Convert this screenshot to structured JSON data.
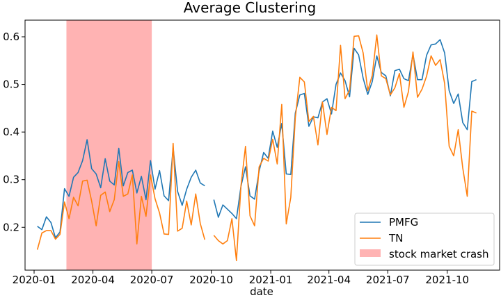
{
  "chart_data": {
    "type": "line",
    "title": "Average Clustering",
    "xlabel": "date",
    "ylabel": "",
    "xlim": [
      "2019-12-18",
      "2021-12-21"
    ],
    "ylim": [
      0.11,
      0.635
    ],
    "grid": false,
    "legend_position": "bottom-right",
    "x_ticks": [
      "2020-01-01",
      "2020-04-01",
      "2020-07-01",
      "2020-10-01",
      "2021-01-01",
      "2021-04-01",
      "2021-07-01",
      "2021-10-01"
    ],
    "x_tick_labels": [
      "2020-01",
      "2020-04",
      "2020-07",
      "2020-10",
      "2021-01",
      "2021-04",
      "2021-07",
      "2021-10"
    ],
    "y_ticks": [
      0.2,
      0.3,
      0.4,
      0.5,
      0.6
    ],
    "y_tick_labels": [
      "0.2",
      "0.3",
      "0.4",
      "0.5",
      "0.6"
    ],
    "shaded_region": {
      "label": "stock market crash",
      "start": "2020-02-20",
      "end": "2020-07-01",
      "color": "#ffb3b3"
    },
    "series": [
      {
        "name": "PMFG",
        "color": "#1f77b4",
        "segments": [
          {
            "x": [
              "2020-01-06",
              "2020-01-13",
              "2020-01-20",
              "2020-01-27",
              "2020-02-03",
              "2020-02-10",
              "2020-02-17",
              "2020-02-24",
              "2020-03-02",
              "2020-03-09",
              "2020-03-16",
              "2020-03-23",
              "2020-03-30",
              "2020-04-06",
              "2020-04-13",
              "2020-04-20",
              "2020-04-27",
              "2020-05-04",
              "2020-05-11",
              "2020-05-18",
              "2020-05-25",
              "2020-06-01",
              "2020-06-08",
              "2020-06-15",
              "2020-06-22",
              "2020-06-29",
              "2020-07-06",
              "2020-07-13",
              "2020-07-20",
              "2020-07-27",
              "2020-08-03",
              "2020-08-10",
              "2020-08-17",
              "2020-08-24",
              "2020-08-31",
              "2020-09-07",
              "2020-09-14",
              "2020-09-21"
            ],
            "y": [
              0.202,
              0.195,
              0.222,
              0.21,
              0.178,
              0.19,
              0.281,
              0.265,
              0.305,
              0.315,
              0.34,
              0.384,
              0.323,
              0.312,
              0.283,
              0.344,
              0.297,
              0.289,
              0.366,
              0.287,
              0.315,
              0.32,
              0.272,
              0.307,
              0.258,
              0.34,
              0.28,
              0.319,
              0.266,
              0.256,
              0.367,
              0.275,
              0.246,
              0.28,
              0.305,
              0.32,
              0.293,
              0.287
            ]
          },
          {
            "x": [
              "2020-10-05",
              "2020-10-12",
              "2020-10-19",
              "2020-10-26",
              "2020-11-02",
              "2020-11-09",
              "2020-11-16",
              "2020-11-23",
              "2020-11-30",
              "2020-12-07",
              "2020-12-14",
              "2020-12-21",
              "2020-12-28",
              "2021-01-04",
              "2021-01-11",
              "2021-01-18",
              "2021-01-25",
              "2021-02-01",
              "2021-02-08",
              "2021-02-15",
              "2021-02-22",
              "2021-03-01",
              "2021-03-08",
              "2021-03-15",
              "2021-03-22",
              "2021-03-29",
              "2021-04-05",
              "2021-04-12",
              "2021-04-19",
              "2021-04-26",
              "2021-05-03",
              "2021-05-10",
              "2021-05-17",
              "2021-05-24",
              "2021-05-31",
              "2021-06-07",
              "2021-06-14",
              "2021-06-21",
              "2021-06-28",
              "2021-07-05",
              "2021-07-12",
              "2021-07-19",
              "2021-07-26",
              "2021-08-02",
              "2021-08-09",
              "2021-08-16",
              "2021-08-23",
              "2021-08-30",
              "2021-09-06",
              "2021-09-13",
              "2021-09-20",
              "2021-09-27",
              "2021-10-04",
              "2021-10-11",
              "2021-10-18",
              "2021-10-25",
              "2021-11-01",
              "2021-11-08",
              "2021-11-15"
            ],
            "y": [
              0.258,
              0.221,
              0.247,
              0.238,
              0.229,
              0.218,
              0.286,
              0.327,
              0.266,
              0.259,
              0.318,
              0.357,
              0.345,
              0.402,
              0.368,
              0.418,
              0.312,
              0.311,
              0.44,
              0.478,
              0.481,
              0.412,
              0.432,
              0.43,
              0.463,
              0.47,
              0.438,
              0.5,
              0.524,
              0.508,
              0.474,
              0.576,
              0.562,
              0.513,
              0.479,
              0.506,
              0.56,
              0.525,
              0.518,
              0.476,
              0.529,
              0.532,
              0.512,
              0.508,
              0.563,
              0.51,
              0.51,
              0.561,
              0.583,
              0.585,
              0.594,
              0.566,
              0.487,
              0.46,
              0.48,
              0.42,
              0.405,
              0.506,
              0.51
            ]
          }
        ]
      },
      {
        "name": "TN",
        "color": "#ff7f0e",
        "segments": [
          {
            "x": [
              "2020-01-06",
              "2020-01-13",
              "2020-01-20",
              "2020-01-27",
              "2020-02-03",
              "2020-02-10",
              "2020-02-17",
              "2020-02-24",
              "2020-03-02",
              "2020-03-09",
              "2020-03-16",
              "2020-03-23",
              "2020-03-30",
              "2020-04-06",
              "2020-04-13",
              "2020-04-20",
              "2020-04-27",
              "2020-05-04",
              "2020-05-11",
              "2020-05-18",
              "2020-05-25",
              "2020-06-01",
              "2020-06-08",
              "2020-06-15",
              "2020-06-22",
              "2020-06-29",
              "2020-07-06",
              "2020-07-13",
              "2020-07-20",
              "2020-07-27",
              "2020-08-03",
              "2020-08-10",
              "2020-08-17",
              "2020-08-24",
              "2020-08-31",
              "2020-09-07",
              "2020-09-14",
              "2020-09-21"
            ],
            "y": [
              0.153,
              0.188,
              0.193,
              0.193,
              0.175,
              0.185,
              0.253,
              0.218,
              0.263,
              0.245,
              0.297,
              0.299,
              0.255,
              0.203,
              0.267,
              0.274,
              0.233,
              0.258,
              0.338,
              0.265,
              0.27,
              0.31,
              0.165,
              0.265,
              0.223,
              0.31,
              0.26,
              0.23,
              0.186,
              0.185,
              0.376,
              0.192,
              0.198,
              0.255,
              0.205,
              0.27,
              0.208,
              0.174
            ]
          },
          {
            "x": [
              "2020-10-05",
              "2020-10-12",
              "2020-10-19",
              "2020-10-26",
              "2020-11-02",
              "2020-11-09",
              "2020-11-16",
              "2020-11-23",
              "2020-11-30",
              "2020-12-07",
              "2020-12-14",
              "2020-12-21",
              "2020-12-28",
              "2021-01-04",
              "2021-01-11",
              "2021-01-18",
              "2021-01-25",
              "2021-02-01",
              "2021-02-08",
              "2021-02-15",
              "2021-02-22",
              "2021-03-01",
              "2021-03-08",
              "2021-03-15",
              "2021-03-22",
              "2021-03-29",
              "2021-04-05",
              "2021-04-12",
              "2021-04-19",
              "2021-04-26",
              "2021-05-03",
              "2021-05-10",
              "2021-05-17",
              "2021-05-24",
              "2021-05-31",
              "2021-06-07",
              "2021-06-14",
              "2021-06-21",
              "2021-06-28",
              "2021-07-05",
              "2021-07-12",
              "2021-07-19",
              "2021-07-26",
              "2021-08-02",
              "2021-08-09",
              "2021-08-16",
              "2021-08-23",
              "2021-08-30",
              "2021-09-06",
              "2021-09-13",
              "2021-09-20",
              "2021-09-27",
              "2021-10-04",
              "2021-10-11",
              "2021-10-18",
              "2021-10-25",
              "2021-11-01",
              "2021-11-08",
              "2021-11-15"
            ],
            "y": [
              0.183,
              0.172,
              0.165,
              0.172,
              0.218,
              0.13,
              0.287,
              0.37,
              0.224,
              0.203,
              0.327,
              0.345,
              0.339,
              0.385,
              0.333,
              0.458,
              0.207,
              0.263,
              0.43,
              0.515,
              0.505,
              0.422,
              0.433,
              0.373,
              0.463,
              0.395,
              0.452,
              0.445,
              0.582,
              0.47,
              0.488,
              0.601,
              0.602,
              0.566,
              0.487,
              0.519,
              0.604,
              0.518,
              0.512,
              0.478,
              0.493,
              0.523,
              0.452,
              0.485,
              0.568,
              0.473,
              0.49,
              0.517,
              0.56,
              0.54,
              0.552,
              0.502,
              0.37,
              0.35,
              0.405,
              0.325,
              0.265,
              0.444,
              0.44
            ]
          }
        ]
      }
    ]
  }
}
